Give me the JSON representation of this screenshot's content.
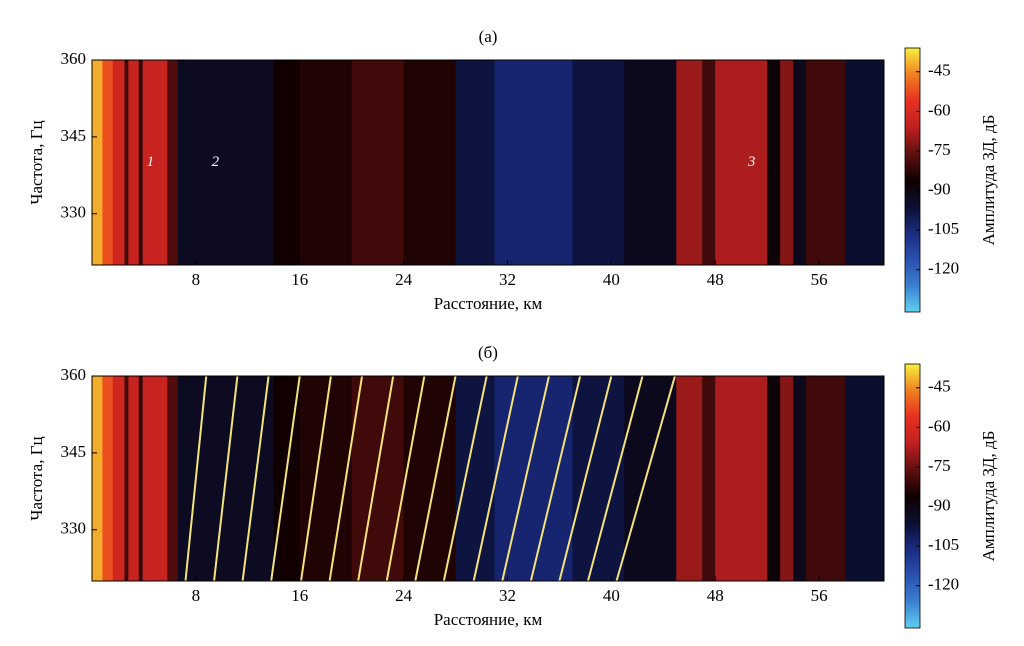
{
  "chart_data": [
    {
      "type": "heatmap",
      "title": "(а)",
      "xlabel": "Расстояние, км",
      "ylabel": "Частота, Гц",
      "colorbar_label": "Амплитуда ЗД, дБ",
      "xlim": [
        0,
        61
      ],
      "xticks": [
        8,
        16,
        24,
        32,
        40,
        48,
        56
      ],
      "ylim": [
        320,
        360
      ],
      "yticks": [
        330,
        345,
        360
      ],
      "clim": [
        -136,
        -36
      ],
      "cticks": [
        -45,
        -60,
        -75,
        -90,
        -105,
        -120
      ],
      "colormap": [
        "#60d0f0",
        "#3a80d0",
        "#2a50b0",
        "#1a2a80",
        "#0a0f30",
        "#100000",
        "#601010",
        "#c02020",
        "#e83020",
        "#f08020",
        "#f8f040"
      ],
      "segments": [
        {
          "from": 0,
          "to": 0.8,
          "value": -42
        },
        {
          "from": 0.8,
          "to": 1.6,
          "value": -52
        },
        {
          "from": 1.6,
          "to": 2.5,
          "value": -62
        },
        {
          "from": 2.5,
          "to": 2.8,
          "value": -80
        },
        {
          "from": 2.8,
          "to": 3.6,
          "value": -64
        },
        {
          "from": 3.6,
          "to": 3.9,
          "value": -82
        },
        {
          "from": 3.9,
          "to": 5.8,
          "value": -64
        },
        {
          "from": 5.8,
          "to": 6.6,
          "value": -78
        },
        {
          "from": 6.6,
          "to": 14,
          "value": -93
        },
        {
          "from": 14,
          "to": 16,
          "value": -86
        },
        {
          "from": 16,
          "to": 20,
          "value": -84
        },
        {
          "from": 20,
          "to": 24,
          "value": -80
        },
        {
          "from": 24,
          "to": 28,
          "value": -84
        },
        {
          "from": 28,
          "to": 31,
          "value": -98
        },
        {
          "from": 31,
          "to": 37,
          "value": -104
        },
        {
          "from": 37,
          "to": 41,
          "value": -98
        },
        {
          "from": 41,
          "to": 45,
          "value": -92
        },
        {
          "from": 45,
          "to": 47,
          "value": -70
        },
        {
          "from": 47,
          "to": 48,
          "value": -80
        },
        {
          "from": 48,
          "to": 52,
          "value": -68
        },
        {
          "from": 52,
          "to": 53,
          "value": -88
        },
        {
          "from": 53,
          "to": 54,
          "value": -72
        },
        {
          "from": 54,
          "to": 55,
          "value": -92
        },
        {
          "from": 55,
          "to": 58,
          "value": -80
        },
        {
          "from": 58,
          "to": 61,
          "value": -96
        }
      ],
      "annotations": [
        {
          "text": "1",
          "x": 4.5,
          "y": 340
        },
        {
          "text": "2",
          "x": 9.5,
          "y": 340
        },
        {
          "text": "3",
          "x": 50.8,
          "y": 340
        }
      ]
    },
    {
      "type": "heatmap",
      "title": "(б)",
      "xlabel": "Расстояние, км",
      "ylabel": "Частота, Гц",
      "colorbar_label": "Амплитуда ЗД, дБ",
      "xlim": [
        0,
        61
      ],
      "xticks": [
        8,
        16,
        24,
        32,
        40,
        48,
        56
      ],
      "ylim": [
        320,
        360
      ],
      "yticks": [
        330,
        345,
        360
      ],
      "clim": [
        -136,
        -36
      ],
      "cticks": [
        -45,
        -60,
        -75,
        -90,
        -105,
        -120
      ],
      "colormap": [
        "#60d0f0",
        "#3a80d0",
        "#2a50b0",
        "#1a2a80",
        "#0a0f30",
        "#100000",
        "#601010",
        "#c02020",
        "#e83020",
        "#f08020",
        "#f8f040"
      ],
      "segments": [
        {
          "from": 0,
          "to": 0.8,
          "value": -42
        },
        {
          "from": 0.8,
          "to": 1.6,
          "value": -52
        },
        {
          "from": 1.6,
          "to": 2.5,
          "value": -62
        },
        {
          "from": 2.5,
          "to": 2.8,
          "value": -80
        },
        {
          "from": 2.8,
          "to": 3.6,
          "value": -64
        },
        {
          "from": 3.6,
          "to": 3.9,
          "value": -82
        },
        {
          "from": 3.9,
          "to": 5.8,
          "value": -64
        },
        {
          "from": 5.8,
          "to": 6.6,
          "value": -78
        },
        {
          "from": 6.6,
          "to": 14,
          "value": -93
        },
        {
          "from": 14,
          "to": 16,
          "value": -86
        },
        {
          "from": 16,
          "to": 20,
          "value": -84
        },
        {
          "from": 20,
          "to": 24,
          "value": -80
        },
        {
          "from": 24,
          "to": 28,
          "value": -84
        },
        {
          "from": 28,
          "to": 31,
          "value": -98
        },
        {
          "from": 31,
          "to": 37,
          "value": -104
        },
        {
          "from": 37,
          "to": 41,
          "value": -98
        },
        {
          "from": 41,
          "to": 45,
          "value": -92
        },
        {
          "from": 45,
          "to": 47,
          "value": -70
        },
        {
          "from": 47,
          "to": 48,
          "value": -80
        },
        {
          "from": 48,
          "to": 52,
          "value": -68
        },
        {
          "from": 52,
          "to": 53,
          "value": -88
        },
        {
          "from": 53,
          "to": 54,
          "value": -72
        },
        {
          "from": 54,
          "to": 55,
          "value": -92
        },
        {
          "from": 55,
          "to": 58,
          "value": -80
        },
        {
          "from": 58,
          "to": 61,
          "value": -96
        }
      ],
      "lines": {
        "color": "#f4e27a",
        "x_bottom": [
          7.2,
          9.4,
          11.6,
          13.8,
          16.1,
          18.3,
          20.5,
          22.7,
          24.9,
          27.1,
          29.4,
          31.6,
          33.8,
          36.0,
          38.2,
          40.4
        ],
        "x_top": [
          8.8,
          11.2,
          13.6,
          16.0,
          18.4,
          20.8,
          23.2,
          25.6,
          28.0,
          30.4,
          32.8,
          35.2,
          37.6,
          40.0,
          42.4,
          44.9
        ]
      }
    }
  ]
}
